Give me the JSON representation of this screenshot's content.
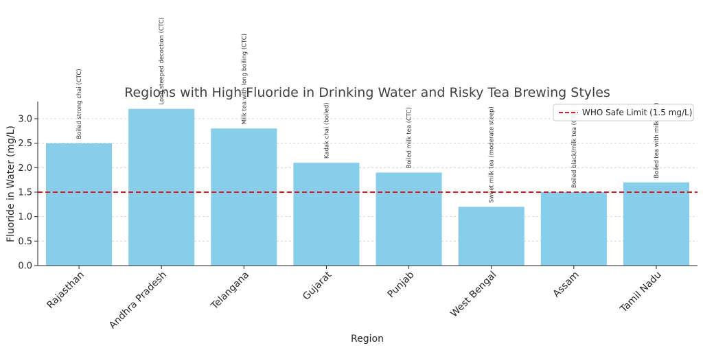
{
  "chart_data": {
    "type": "bar",
    "title": "Regions with High Fluoride in Drinking Water and Risky Tea Brewing Styles",
    "xlabel": "Region",
    "ylabel": "Fluoride in Water (mg/L)",
    "ylim": [
      0,
      3.35
    ],
    "yticks": [
      "0.0",
      "0.5",
      "1.0",
      "1.5",
      "2.0",
      "2.5",
      "3.0"
    ],
    "grid": "horizontal dashed",
    "categories": [
      "Rajasthan",
      "Andhra Pradesh",
      "Telangana",
      "Gujarat",
      "Punjab",
      "West Bengal",
      "Assam",
      "Tamil Nadu"
    ],
    "values": [
      2.5,
      3.2,
      2.8,
      2.1,
      1.9,
      1.2,
      1.5,
      1.7
    ],
    "annotations": [
      "Boiled strong chai (CTC)",
      "Long steeped decoction (CTC)",
      "Milk tea with long boiling (CTC)",
      "Kadak chai (boiled)",
      "Boiled milk tea (CTC)",
      "Sweet milk tea (moderate steep)",
      "Boiled black/milk tea (CTC)",
      "Boiled tea with milk (CTC)"
    ],
    "bar_color": "#87ceeb",
    "reference_line": {
      "label": "WHO Safe Limit (1.5 mg/L)",
      "value": 1.5,
      "color": "#e8141c",
      "style": "dashed"
    },
    "legend_position": "top-right"
  }
}
